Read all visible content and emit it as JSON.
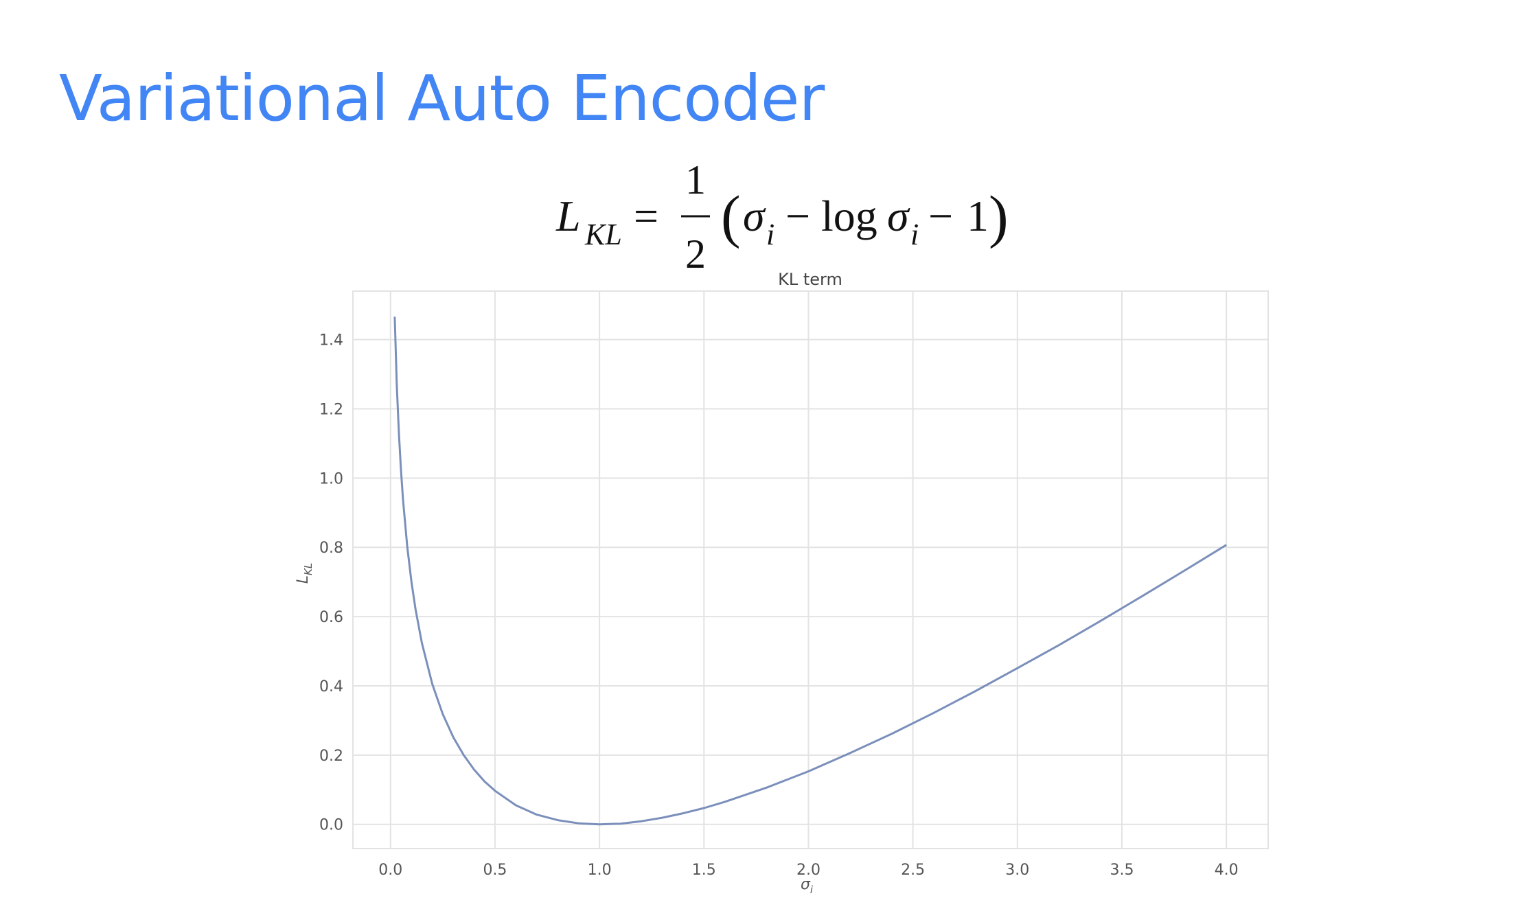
{
  "slide": {
    "title": "Variational Auto Encoder"
  },
  "formula": {
    "lhs": "L",
    "lhs_sub": "KL",
    "equals": "=",
    "numerator": "1",
    "denominator": "2",
    "open_paren": "(",
    "sigma1": "σ",
    "sub1": "i",
    "minus1": "−",
    "log": "log",
    "sigma2": "σ",
    "sub2": "i",
    "minus2": "−",
    "one": "1",
    "close_paren": ")"
  },
  "chart_data": {
    "type": "line",
    "title": "KL term",
    "xlabel": "σ",
    "xlabel_sub": "i",
    "ylabel": "L",
    "ylabel_sub": "KL",
    "xlim": [
      -0.18,
      4.2
    ],
    "ylim": [
      -0.07,
      1.54
    ],
    "xticks": [
      0.0,
      0.5,
      1.0,
      1.5,
      2.0,
      2.5,
      3.0,
      3.5,
      4.0
    ],
    "xtick_labels": [
      "0.0",
      "0.5",
      "1.0",
      "1.5",
      "2.0",
      "2.5",
      "3.0",
      "3.5",
      "4.0"
    ],
    "yticks": [
      0.0,
      0.2,
      0.4,
      0.6,
      0.8,
      1.0,
      1.2,
      1.4
    ],
    "ytick_labels": [
      "0.0",
      "0.2",
      "0.4",
      "0.6",
      "0.8",
      "1.0",
      "1.2",
      "1.4"
    ],
    "grid": true,
    "line_color": "#7b8fbb",
    "grid_color": "#e3e3e3",
    "series": [
      {
        "x": [
          0.02,
          0.03,
          0.04,
          0.05,
          0.06,
          0.08,
          0.1,
          0.12,
          0.15,
          0.2,
          0.25,
          0.3,
          0.35,
          0.4,
          0.45,
          0.5,
          0.6,
          0.7,
          0.8,
          0.9,
          1.0,
          1.1,
          1.2,
          1.3,
          1.4,
          1.5,
          1.6,
          1.8,
          2.0,
          2.2,
          2.4,
          2.6,
          2.8,
          3.0,
          3.2,
          3.4,
          3.6,
          3.8,
          4.0
        ],
        "y": [
          1.466,
          1.268,
          1.129,
          1.023,
          0.937,
          0.803,
          0.701,
          0.62,
          0.524,
          0.405,
          0.318,
          0.252,
          0.2,
          0.158,
          0.124,
          0.097,
          0.055,
          0.028,
          0.012,
          0.003,
          0.0,
          0.002,
          0.009,
          0.019,
          0.032,
          0.047,
          0.065,
          0.106,
          0.153,
          0.206,
          0.262,
          0.322,
          0.385,
          0.451,
          0.518,
          0.588,
          0.66,
          0.733,
          0.807
        ]
      }
    ]
  }
}
